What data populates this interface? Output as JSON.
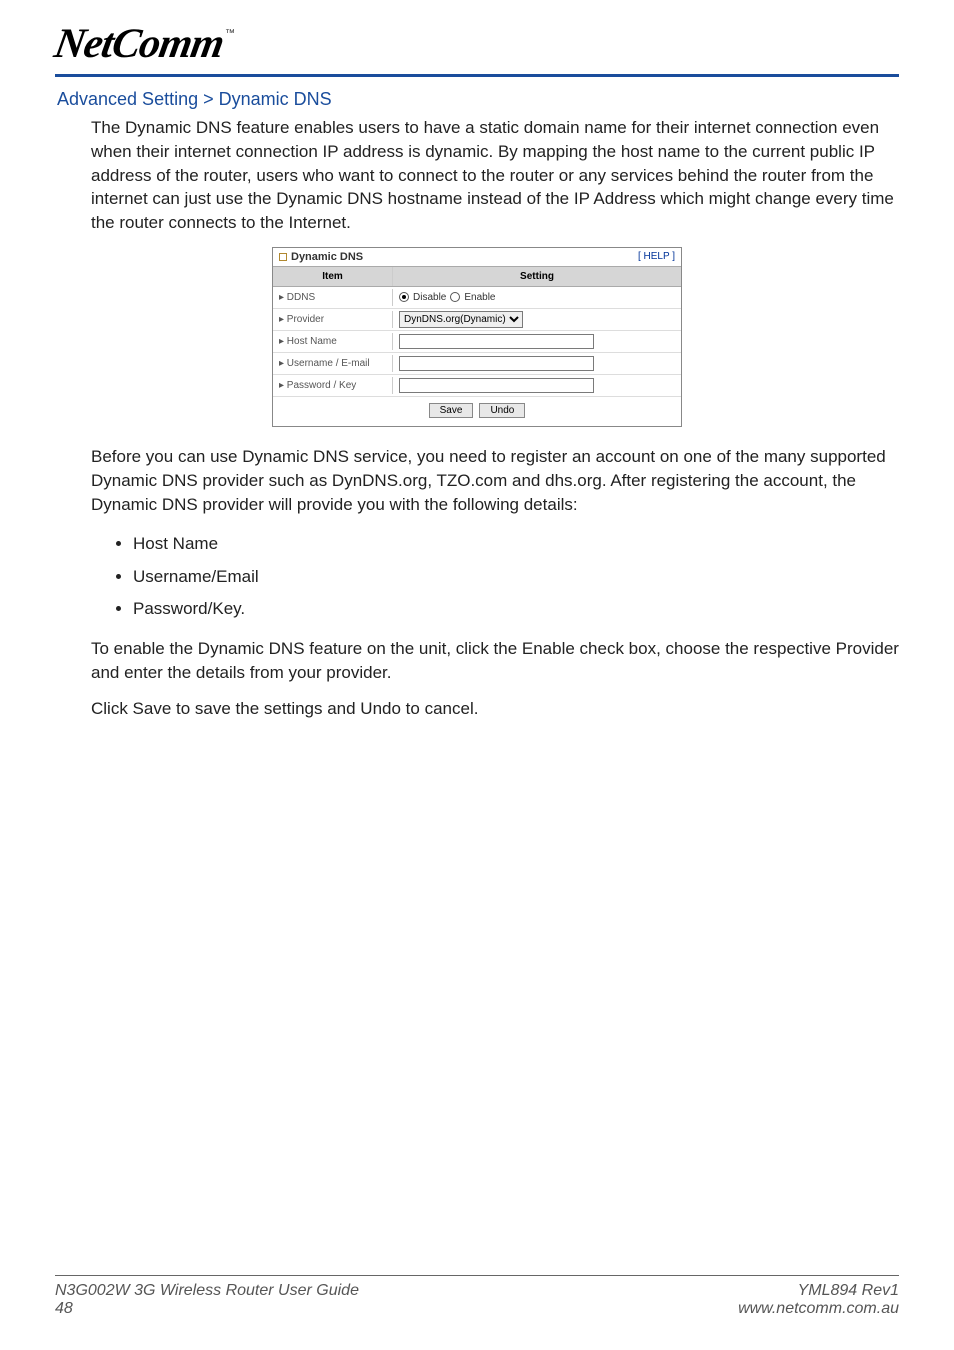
{
  "logo": {
    "text": "NetComm",
    "tm": "™"
  },
  "breadcrumb": "Advanced Setting > Dynamic DNS",
  "intro": "The Dynamic DNS feature enables users to have a static domain name for their internet connection even when their internet connection IP address is dynamic. By mapping the host name to the current public IP address of the router, users who want to connect to the router or any services behind the router from the internet can just use the Dynamic DNS hostname instead of the IP Address which might change every time the router connects to the Internet.",
  "panel": {
    "title": "Dynamic DNS",
    "help": "[ HELP ]",
    "columns": {
      "item": "Item",
      "setting": "Setting"
    },
    "rows": {
      "ddns": {
        "label": "▸ DDNS",
        "disable": "Disable",
        "enable": "Enable"
      },
      "provider": {
        "label": "▸ Provider",
        "value": "DynDNS.org(Dynamic)"
      },
      "hostname": {
        "label": "▸ Host Name",
        "value": ""
      },
      "username": {
        "label": "▸ Username / E-mail",
        "value": ""
      },
      "password": {
        "label": "▸ Password / Key",
        "value": ""
      }
    },
    "buttons": {
      "save": "Save",
      "undo": "Undo"
    }
  },
  "para2": "Before you can use Dynamic DNS service, you need to register an account on one of the many supported Dynamic DNS provider such as DynDNS.org, TZO.com and dhs.org. After registering the account, the Dynamic DNS provider will provide you with the following details:",
  "list": {
    "i0": "Host Name",
    "i1": "Username/Email",
    "i2": "Password/Key."
  },
  "para3": "To enable the Dynamic DNS feature on the unit, click the Enable check box, choose the respective Provider and enter the details from your provider.",
  "para4": "Click Save to save the settings and Undo to cancel.",
  "footer": {
    "guide": "N3G002W 3G Wireless Router User Guide",
    "page": "48",
    "rev": "YML894 Rev1",
    "url": "www.netcomm.com.au"
  }
}
